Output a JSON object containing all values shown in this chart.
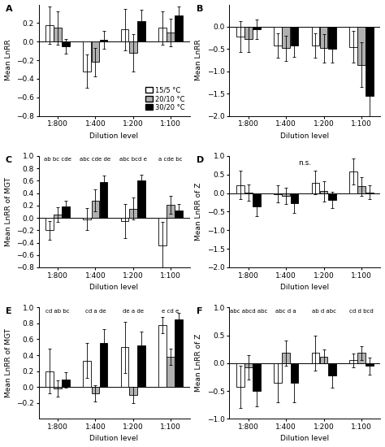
{
  "panels": [
    {
      "label": "A",
      "ylabel": "Mean LnRR",
      "xlabel": "Dilution level",
      "ylim": [
        -0.8,
        0.4
      ],
      "yticks": [
        -0.8,
        -0.6,
        -0.4,
        -0.2,
        0.0,
        0.2
      ],
      "show_legend": true,
      "annotations": [],
      "bar_values": [
        [
          0.18,
          0.15,
          -0.05
        ],
        [
          -0.32,
          -0.22,
          0.02
        ],
        [
          0.13,
          -0.12,
          0.22
        ],
        [
          0.15,
          0.1,
          0.28
        ]
      ],
      "bar_errors": [
        [
          0.2,
          0.18,
          0.08
        ],
        [
          0.18,
          0.15,
          0.1
        ],
        [
          0.22,
          0.2,
          0.12
        ],
        [
          0.18,
          0.15,
          0.1
        ]
      ]
    },
    {
      "label": "B",
      "ylabel": "Mean LnRR",
      "xlabel": "Dilution level",
      "ylim": [
        -2.0,
        0.5
      ],
      "yticks": [
        -2.0,
        -1.5,
        -1.0,
        -0.5,
        0.0
      ],
      "show_legend": false,
      "annotations": [],
      "bar_values": [
        [
          -0.22,
          -0.28,
          -0.05
        ],
        [
          -0.42,
          -0.48,
          -0.42
        ],
        [
          -0.42,
          -0.48,
          -0.5
        ],
        [
          -0.45,
          -0.85,
          -1.55
        ]
      ],
      "bar_errors": [
        [
          0.35,
          0.28,
          0.22
        ],
        [
          0.28,
          0.28,
          0.25
        ],
        [
          0.28,
          0.32,
          0.3
        ],
        [
          0.35,
          0.5,
          0.58
        ]
      ]
    },
    {
      "label": "C",
      "ylabel": "Mean LnRR of MGT",
      "xlabel": "Dilution level",
      "ylim": [
        -0.8,
        1.0
      ],
      "yticks": [
        -0.8,
        -0.6,
        -0.4,
        -0.2,
        0.0,
        0.2,
        0.4,
        0.6,
        0.8,
        1.0
      ],
      "show_legend": false,
      "annotations": [
        "ab bc cde",
        "abc cde de",
        "abc bcd e",
        "a cde bc"
      ],
      "bar_values": [
        [
          -0.2,
          0.05,
          0.18
        ],
        [
          -0.02,
          0.28,
          0.58
        ],
        [
          -0.05,
          0.15,
          0.6
        ],
        [
          -0.45,
          0.21,
          0.12
        ]
      ],
      "bar_errors": [
        [
          0.15,
          0.12,
          0.1
        ],
        [
          0.18,
          0.18,
          0.1
        ],
        [
          0.28,
          0.18,
          0.1
        ],
        [
          0.38,
          0.15,
          0.1
        ]
      ]
    },
    {
      "label": "D",
      "ylabel": "Mean LnRR of Z",
      "xlabel": "Dilution level",
      "ylim": [
        -2.0,
        1.0
      ],
      "yticks": [
        -2.0,
        -1.5,
        -1.0,
        -0.5,
        0.0,
        0.5,
        1.0
      ],
      "show_legend": false,
      "annotations": [
        "n.s."
      ],
      "bar_values": [
        [
          0.22,
          0.02,
          -0.35
        ],
        [
          -0.02,
          -0.08,
          -0.28
        ],
        [
          0.28,
          0.05,
          -0.18
        ],
        [
          0.58,
          0.18,
          0.02
        ]
      ],
      "bar_errors": [
        [
          0.38,
          0.22,
          0.28
        ],
        [
          0.22,
          0.22,
          0.25
        ],
        [
          0.32,
          0.28,
          0.22
        ],
        [
          0.35,
          0.25,
          0.18
        ]
      ]
    },
    {
      "label": "E",
      "ylabel": "Mean LnRR of MGT",
      "xlabel": "Dilution level",
      "ylim": [
        -0.4,
        1.0
      ],
      "yticks": [
        -0.2,
        0.0,
        0.2,
        0.4,
        0.6,
        0.8,
        1.0
      ],
      "show_legend": false,
      "annotations": [
        "cd ab bc",
        "cd a de",
        "de a de",
        "e cd e"
      ],
      "bar_values": [
        [
          0.2,
          -0.02,
          0.09
        ],
        [
          0.33,
          -0.08,
          0.55
        ],
        [
          0.5,
          -0.1,
          0.52
        ],
        [
          0.78,
          0.38,
          0.85
        ]
      ],
      "bar_errors": [
        [
          0.28,
          0.1,
          0.1
        ],
        [
          0.22,
          0.1,
          0.18
        ],
        [
          0.32,
          0.1,
          0.18
        ],
        [
          0.1,
          0.1,
          0.08
        ]
      ]
    },
    {
      "label": "F",
      "ylabel": "Mean LnRR of Z",
      "xlabel": "Dilution level",
      "ylim": [
        -1.0,
        1.0
      ],
      "yticks": [
        -1.0,
        -0.5,
        0.0,
        0.5,
        1.0
      ],
      "show_legend": false,
      "annotations": [
        "abc abcd abc",
        "abc d a",
        "ab d abc",
        "cd d bcd"
      ],
      "bar_values": [
        [
          -0.42,
          -0.08,
          -0.5
        ],
        [
          -0.35,
          0.18,
          -0.35
        ],
        [
          0.18,
          0.12,
          -0.22
        ],
        [
          0.05,
          0.18,
          -0.05
        ]
      ],
      "bar_errors": [
        [
          0.38,
          0.22,
          0.28
        ],
        [
          0.35,
          0.22,
          0.35
        ],
        [
          0.32,
          0.12,
          0.22
        ],
        [
          0.12,
          0.12,
          0.15
        ]
      ]
    }
  ],
  "colors": [
    "white",
    "#b0b0b0",
    "black"
  ],
  "edgecolor": "black",
  "bar_width": 0.22,
  "x_labels": [
    "1:800",
    "1:400",
    "1:200",
    "1:100"
  ],
  "legend_labels": [
    "15/5 °C",
    "20/10 °C",
    "30/20 °C"
  ],
  "background_color": "white",
  "fontsize": 6.5,
  "label_fontsize": 8
}
